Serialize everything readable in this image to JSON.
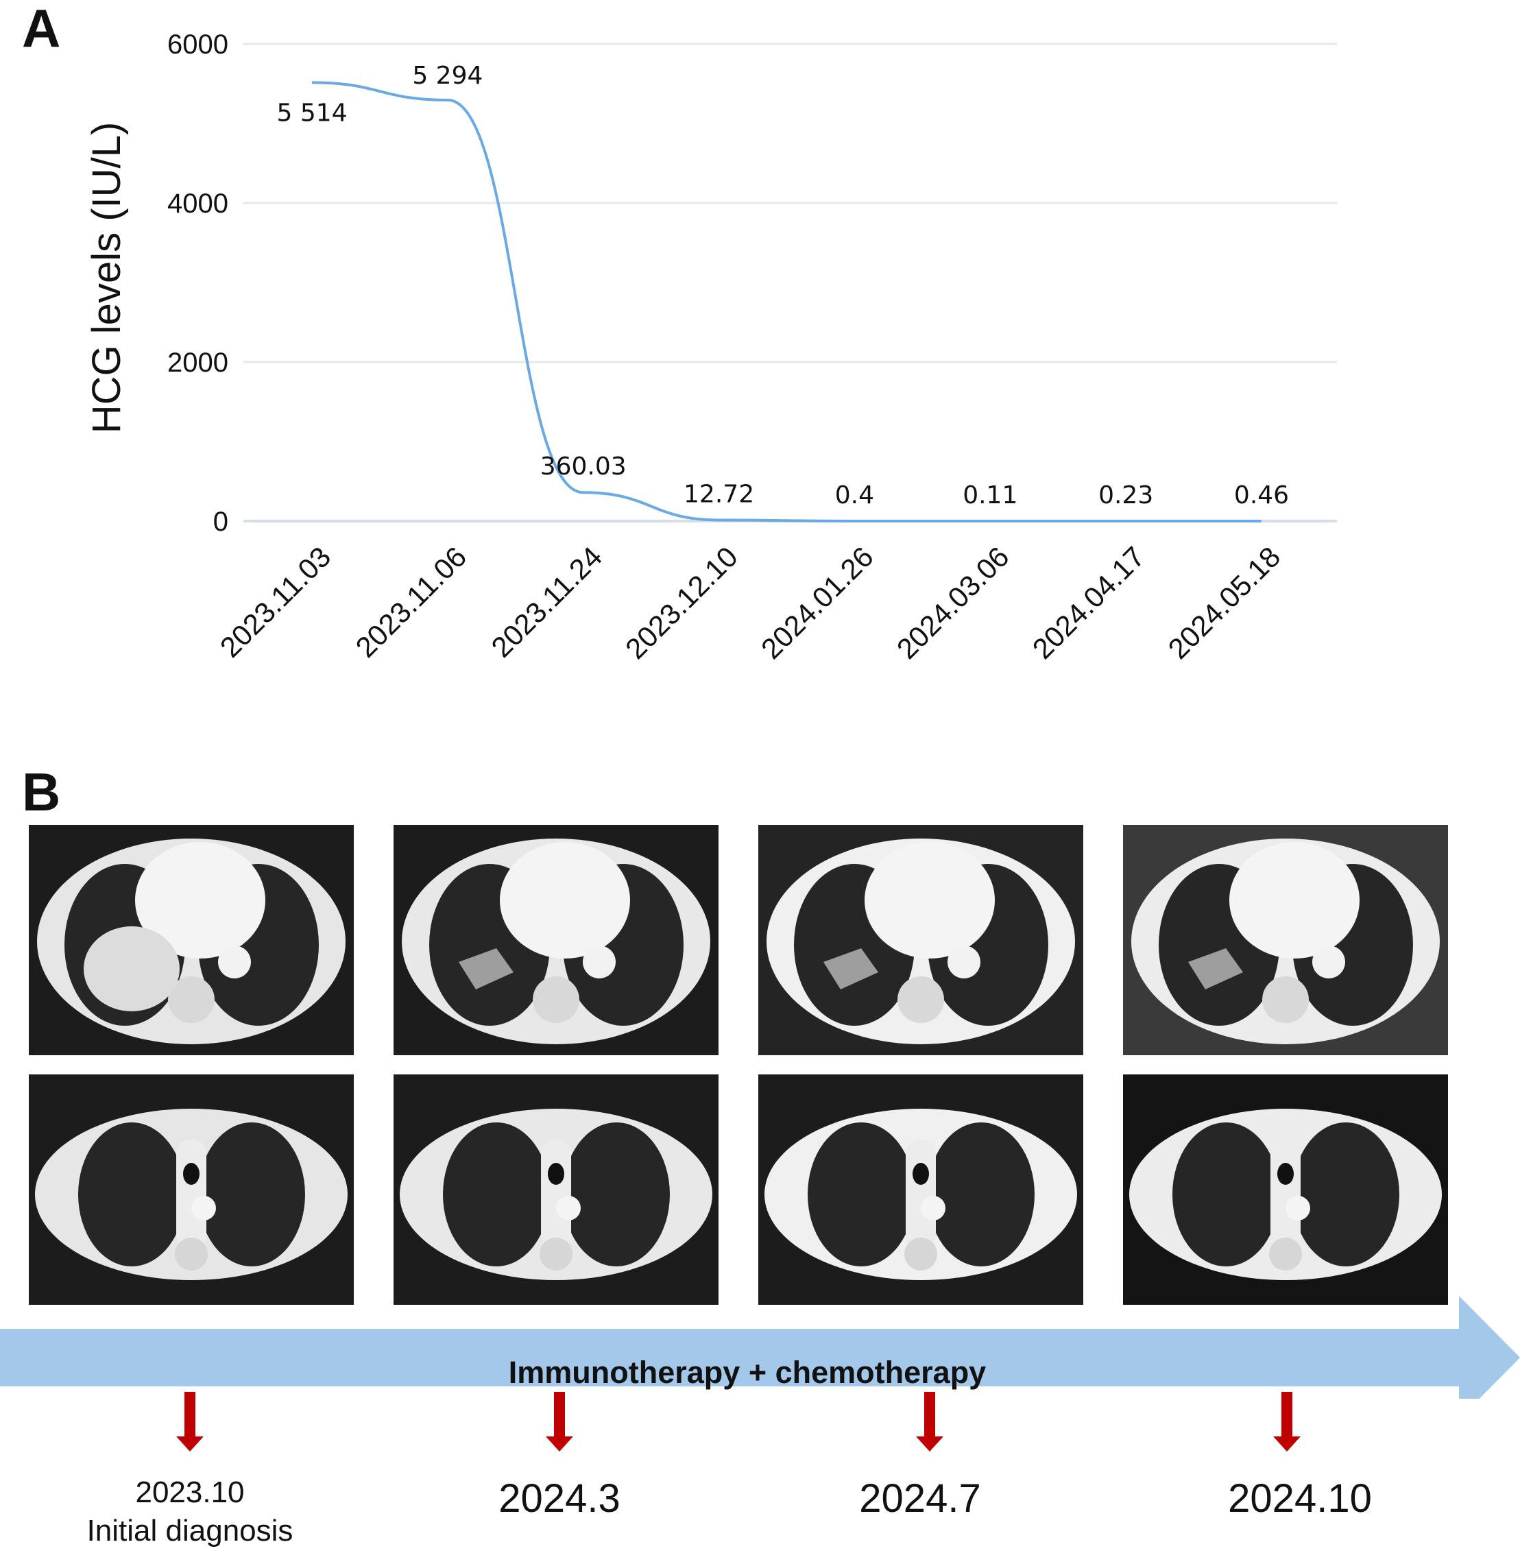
{
  "panel_a": {
    "letter": "A"
  },
  "panel_b": {
    "letter": "B"
  },
  "chart_data": {
    "type": "line",
    "title": "",
    "xlabel": "",
    "ylabel": "HCG levels (IU/L)",
    "categories": [
      "2023.11.03",
      "2023.11.06",
      "2023.11.24",
      "2023.12.10",
      "2024.01.26",
      "2024.03.06",
      "2024.04.17",
      "2024.05.18"
    ],
    "values": [
      5514,
      5294,
      360.03,
      12.72,
      0.4,
      0.11,
      0.23,
      0.46
    ],
    "data_labels": [
      "5 514",
      "5 294",
      "360.03",
      "12.72",
      "0.4",
      "0.11",
      "0.23",
      "0.46"
    ],
    "yticks": [
      0,
      2000,
      4000,
      6000
    ],
    "ylim": [
      0,
      6000
    ],
    "grid": true,
    "line_color": "#6aaae4"
  },
  "ct_scans": {
    "description_free": true,
    "columns": [
      "2023.10",
      "2024.3",
      "2024.7",
      "2024.10"
    ],
    "rows": 2
  },
  "timeline": {
    "label": "Immunotherapy + chemotherapy",
    "arrow_color": "#a4c8ea",
    "marker_color": "#c00000",
    "points": [
      {
        "date": "2023.10",
        "note": "Initial diagnosis"
      },
      {
        "date": "2024.3",
        "note": ""
      },
      {
        "date": "2024.7",
        "note": ""
      },
      {
        "date": "2024.10",
        "note": ""
      }
    ]
  }
}
